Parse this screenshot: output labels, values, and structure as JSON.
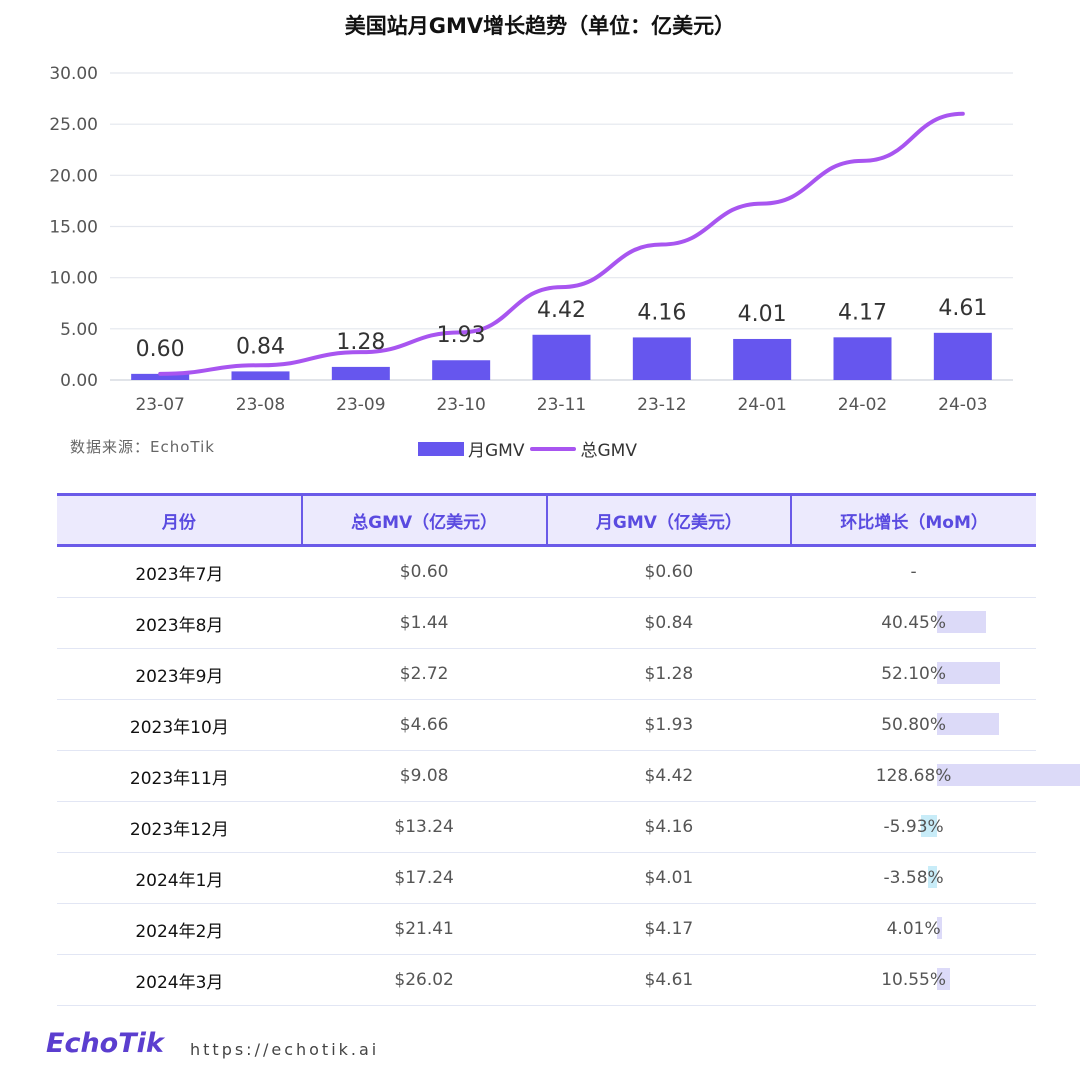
{
  "chart_data": {
    "type": "bar+line",
    "title": "美国站月GMV增长趋势（单位：亿美元）",
    "categories": [
      "23-07",
      "23-08",
      "23-09",
      "23-10",
      "23-11",
      "23-12",
      "24-01",
      "24-02",
      "24-03"
    ],
    "series": [
      {
        "name": "月GMV",
        "type": "bar",
        "color": "#6656ee",
        "values": [
          0.6,
          0.84,
          1.28,
          1.93,
          4.42,
          4.16,
          4.01,
          4.17,
          4.61
        ]
      },
      {
        "name": "总GMV",
        "type": "line",
        "color": "#a855f0",
        "values": [
          0.6,
          1.44,
          2.72,
          4.66,
          9.08,
          13.24,
          17.24,
          21.41,
          26.02
        ]
      }
    ],
    "y_ticks": [
      "30.00",
      "25.00",
      "20.00",
      "15.00",
      "10.00",
      "5.00",
      "0.00"
    ],
    "ylim": [
      0,
      30
    ],
    "grid": true,
    "legend": "bottom-center"
  },
  "source_note": "数据来源：EchoTik",
  "legend": {
    "bar": "月GMV",
    "line": "总GMV"
  },
  "table": {
    "headers": [
      "月份",
      "总GMV（亿美元）",
      "月GMV（亿美元）",
      "环比增长（MoM）"
    ],
    "rows": [
      {
        "month": "2023年7月",
        "total": "$0.60",
        "monthly": "$0.60",
        "mom": "-",
        "mom_value": null
      },
      {
        "month": "2023年8月",
        "total": "$1.44",
        "monthly": "$0.84",
        "mom": "40.45%",
        "mom_value": 40.45
      },
      {
        "month": "2023年9月",
        "total": "$2.72",
        "monthly": "$1.28",
        "mom": "52.10%",
        "mom_value": 52.1
      },
      {
        "month": "2023年10月",
        "total": "$4.66",
        "monthly": "$1.93",
        "mom": "50.80%",
        "mom_value": 50.8
      },
      {
        "month": "2023年11月",
        "total": "$9.08",
        "monthly": "$4.42",
        "mom": "128.68%",
        "mom_value": 128.68
      },
      {
        "month": "2023年12月",
        "total": "$13.24",
        "monthly": "$4.16",
        "mom": "-5.93%",
        "mom_value": -5.93
      },
      {
        "month": "2024年1月",
        "total": "$17.24",
        "monthly": "$4.01",
        "mom": "-3.58%",
        "mom_value": -3.58
      },
      {
        "month": "2024年2月",
        "total": "$21.41",
        "monthly": "$4.17",
        "mom": "4.01%",
        "mom_value": 4.01
      },
      {
        "month": "2024年3月",
        "total": "$26.02",
        "monthly": "$4.61",
        "mom": "10.55%",
        "mom_value": 10.55
      }
    ]
  },
  "footer": {
    "logo": "EchoTik",
    "url": "https://echotik.ai"
  },
  "colors": {
    "accent": "#6a5ae8",
    "bar": "#6656ee",
    "line": "#a855f0",
    "mom_pos": "#dcdaf8",
    "mom_neg": "#c8ecf8"
  }
}
